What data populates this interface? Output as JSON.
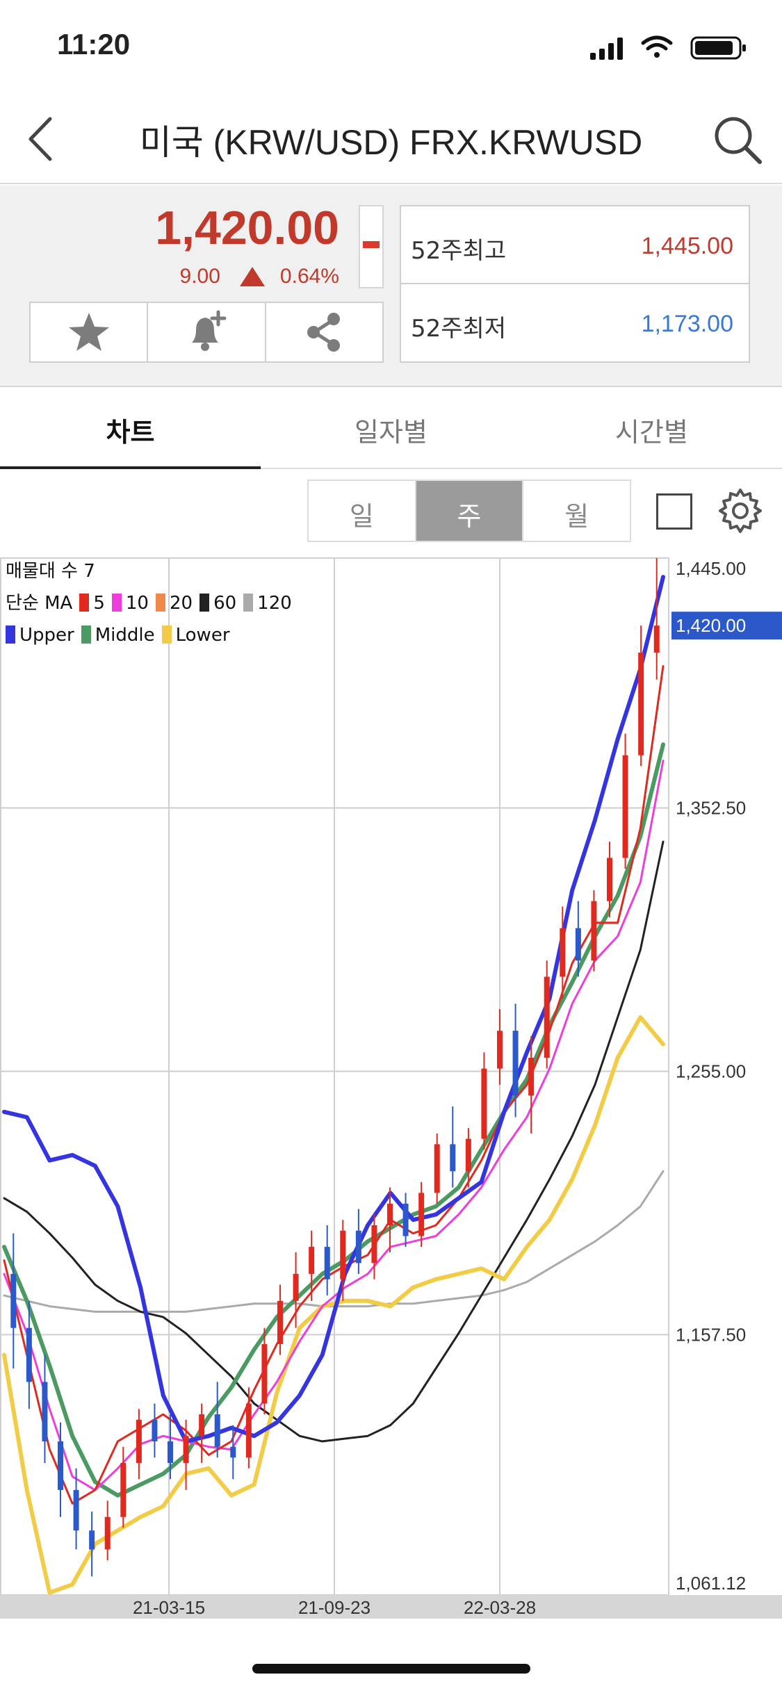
{
  "status_bar": {
    "time": "11:20"
  },
  "header": {
    "title": "미국 (KRW/USD) FRX.KRWUSD"
  },
  "quote": {
    "price": "1,420.00",
    "change": "9.00",
    "change_pct": "0.64%",
    "week52_high_label": "52주최고",
    "week52_high_value": "1,445.00",
    "week52_low_label": "52주최저",
    "week52_low_value": "1,173.00"
  },
  "tabs": [
    {
      "label": "차트",
      "active": true
    },
    {
      "label": "일자별",
      "active": false
    },
    {
      "label": "시간별",
      "active": false
    }
  ],
  "period": [
    {
      "label": "일",
      "active": false
    },
    {
      "label": "주",
      "active": true
    },
    {
      "label": "월",
      "active": false
    }
  ],
  "chart_legend": {
    "row1": "매물대 수 7",
    "row2_prefix": "단순 MA",
    "ma": [
      "5",
      "10",
      "20",
      "60",
      "120"
    ],
    "bands": [
      "Upper",
      "Middle",
      "Lower"
    ]
  },
  "colors": {
    "up": "#e02a1f",
    "down": "#2b59c9",
    "ma5": "#e02a1f",
    "ma10": "#ee3ddc",
    "ma20": "#ef8a4b",
    "ma60": "#222222",
    "ma120": "#aaaaaa",
    "upper": "#3535e0",
    "middle": "#4a9a62",
    "lower": "#f3cc47"
  },
  "chart_data": {
    "type": "line",
    "ylim": [
      1061.12,
      1445.0
    ],
    "y_ticks": [
      "1,445.00",
      "1,352.50",
      "1,255.00",
      "1,157.50",
      "1,061.12"
    ],
    "y_tick_values": [
      1445.0,
      1352.5,
      1255.0,
      1157.5,
      1061.12
    ],
    "x_ticks": [
      "21-03-15",
      "21-09-23",
      "22-03-28"
    ],
    "current_price_label": "1,420.00",
    "current_price": 1420.0,
    "series": [
      {
        "name": "Upper",
        "values": [
          1240,
          1238,
          1222,
          1224,
          1220,
          1205,
          1175,
          1135,
          1118,
          1120,
          1123,
          1120,
          1125,
          1135,
          1150,
          1180,
          1198,
          1210,
          1200,
          1202,
          1208,
          1214,
          1240,
          1262,
          1282,
          1322,
          1348,
          1378,
          1404,
          1438
        ]
      },
      {
        "name": "Middle",
        "values": [
          1190,
          1170,
          1146,
          1120,
          1103,
          1098,
          1102,
          1106,
          1113,
          1127,
          1138,
          1152,
          1164,
          1172,
          1180,
          1185,
          1192,
          1197,
          1202,
          1205,
          1212,
          1226,
          1240,
          1252,
          1272,
          1288,
          1305,
          1320,
          1342,
          1376
        ]
      },
      {
        "name": "Lower",
        "values": [
          1150,
          1100,
          1062,
          1065,
          1080,
          1085,
          1090,
          1094,
          1106,
          1108,
          1098,
          1102,
          1136,
          1160,
          1168,
          1170,
          1170,
          1168,
          1175,
          1178,
          1180,
          1182,
          1178,
          1190,
          1200,
          1215,
          1235,
          1260,
          1275,
          1265
        ]
      },
      {
        "name": "5",
        "values": [
          1185,
          1150,
          1115,
          1095,
          1100,
          1118,
          1123,
          1128,
          1122,
          1113,
          1118,
          1137,
          1154,
          1168,
          1178,
          1183,
          1187,
          1200,
          1195,
          1198,
          1208,
          1222,
          1240,
          1250,
          1270,
          1295,
          1310,
          1310,
          1345,
          1405
        ]
      },
      {
        "name": "10",
        "values": [
          1180,
          1158,
          1130,
          1105,
          1100,
          1108,
          1117,
          1120,
          1118,
          1116,
          1115,
          1128,
          1140,
          1155,
          1168,
          1175,
          1180,
          1190,
          1192,
          1194,
          1202,
          1212,
          1226,
          1238,
          1256,
          1280,
          1296,
          1305,
          1325,
          1370
        ]
      },
      {
        "name": "60",
        "values": [
          1208,
          1203,
          1195,
          1186,
          1176,
          1170,
          1166,
          1164,
          1158,
          1150,
          1142,
          1132,
          1126,
          1120,
          1118,
          1119,
          1120,
          1124,
          1132,
          1145,
          1158,
          1172,
          1186,
          1200,
          1215,
          1231,
          1250,
          1275,
          1300,
          1340
        ]
      },
      {
        "name": "120",
        "values": [
          1172,
          1170,
          1168,
          1167,
          1166,
          1166,
          1166,
          1166,
          1166,
          1167,
          1168,
          1169,
          1169,
          1169,
          1168,
          1168,
          1168,
          1169,
          1169,
          1170,
          1171,
          1172,
          1174,
          1177,
          1182,
          1187,
          1192,
          1198,
          1205,
          1218
        ]
      }
    ],
    "candles": [
      [
        1180,
        1195,
        1145,
        1160
      ],
      [
        1160,
        1170,
        1130,
        1140
      ],
      [
        1140,
        1150,
        1110,
        1118
      ],
      [
        1118,
        1125,
        1090,
        1100
      ],
      [
        1100,
        1108,
        1078,
        1085
      ],
      [
        1085,
        1092,
        1068,
        1078
      ],
      [
        1078,
        1096,
        1074,
        1090
      ],
      [
        1090,
        1116,
        1086,
        1110
      ],
      [
        1110,
        1130,
        1104,
        1126
      ],
      [
        1126,
        1132,
        1112,
        1118
      ],
      [
        1118,
        1128,
        1104,
        1110
      ],
      [
        1110,
        1126,
        1100,
        1120
      ],
      [
        1120,
        1132,
        1110,
        1128
      ],
      [
        1128,
        1140,
        1112,
        1116
      ],
      [
        1116,
        1124,
        1104,
        1112
      ],
      [
        1112,
        1138,
        1108,
        1132
      ],
      [
        1132,
        1160,
        1128,
        1154
      ],
      [
        1154,
        1176,
        1150,
        1170
      ],
      [
        1170,
        1188,
        1160,
        1180
      ],
      [
        1180,
        1196,
        1170,
        1190
      ],
      [
        1190,
        1198,
        1172,
        1178
      ],
      [
        1178,
        1200,
        1170,
        1196
      ],
      [
        1196,
        1204,
        1180,
        1184
      ],
      [
        1184,
        1202,
        1178,
        1198
      ],
      [
        1198,
        1212,
        1188,
        1206
      ],
      [
        1206,
        1210,
        1190,
        1194
      ],
      [
        1194,
        1214,
        1190,
        1210
      ],
      [
        1210,
        1232,
        1206,
        1228
      ],
      [
        1228,
        1242,
        1212,
        1218
      ],
      [
        1218,
        1234,
        1212,
        1230
      ],
      [
        1230,
        1262,
        1226,
        1256
      ],
      [
        1256,
        1278,
        1250,
        1270
      ],
      [
        1270,
        1280,
        1238,
        1246
      ],
      [
        1246,
        1268,
        1232,
        1260
      ],
      [
        1260,
        1296,
        1256,
        1290
      ],
      [
        1290,
        1316,
        1282,
        1308
      ],
      [
        1308,
        1318,
        1290,
        1296
      ],
      [
        1296,
        1322,
        1292,
        1318
      ],
      [
        1318,
        1340,
        1312,
        1334
      ],
      [
        1334,
        1380,
        1330,
        1372
      ],
      [
        1372,
        1420,
        1368,
        1410
      ],
      [
        1410,
        1445,
        1400,
        1420
      ]
    ]
  }
}
